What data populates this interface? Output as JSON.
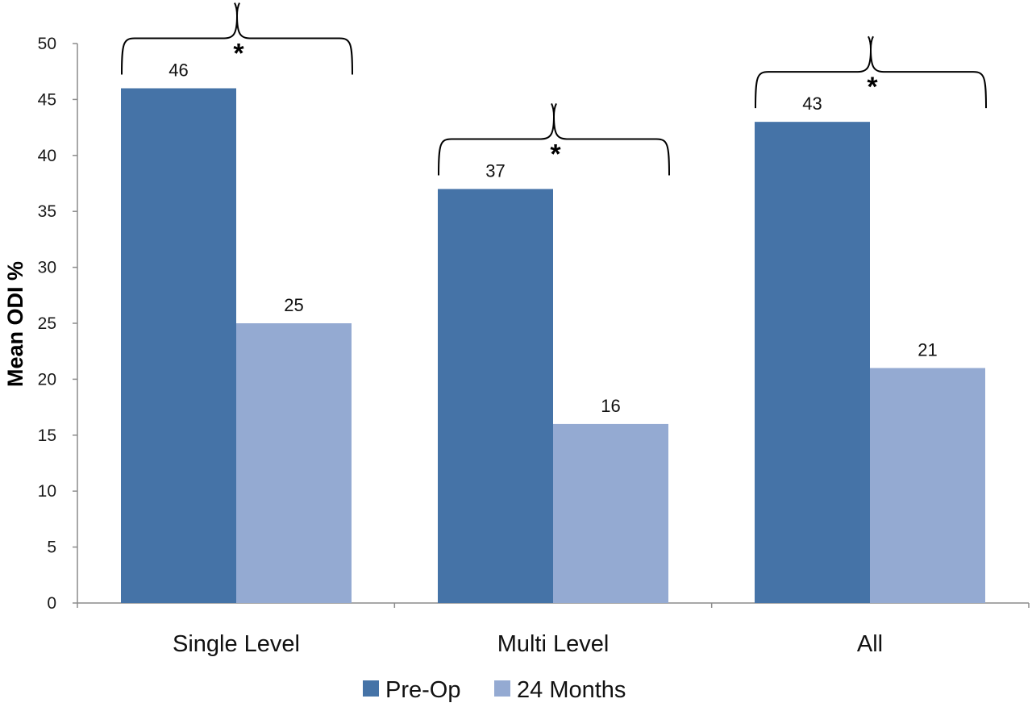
{
  "chart_data": {
    "type": "bar",
    "title": "",
    "xlabel": "",
    "ylabel": "Mean ODI %",
    "ylim": [
      0,
      50
    ],
    "yticks": [
      0,
      5,
      10,
      15,
      20,
      25,
      30,
      35,
      40,
      45,
      50
    ],
    "categories": [
      "Single Level",
      "Multi Level",
      "All"
    ],
    "series": [
      {
        "name": "Pre-Op",
        "values": [
          46,
          37,
          43
        ],
        "color": "#4573a7"
      },
      {
        "name": "24 Months",
        "values": [
          25,
          16,
          21
        ],
        "color": "#94aad2"
      }
    ],
    "data_labels": true,
    "significance_marker": "*",
    "significance_groups": [
      0,
      1,
      2
    ],
    "grid": false,
    "legend": "bottom"
  }
}
